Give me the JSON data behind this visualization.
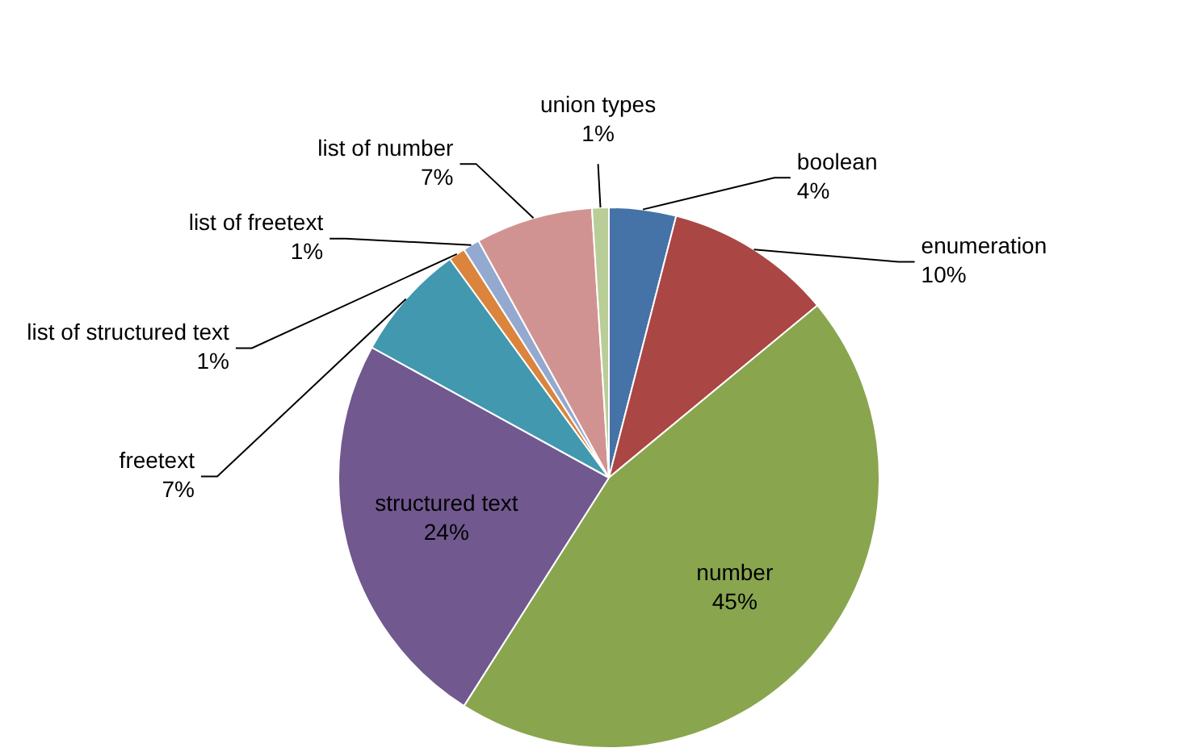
{
  "chart_data": {
    "type": "pie",
    "categories": [
      "boolean",
      "enumeration",
      "number",
      "structured text",
      "freetext",
      "list of structured text",
      "list of freetext",
      "list of number",
      "union types"
    ],
    "values": [
      4,
      10,
      45,
      24,
      7,
      1,
      1,
      7,
      1
    ],
    "value_labels": [
      "4%",
      "10%",
      "45%",
      "24%",
      "7%",
      "1%",
      "1%",
      "7%",
      "1%"
    ],
    "colors": [
      "#4572a7",
      "#aa4643",
      "#89a54e",
      "#71588f",
      "#4198af",
      "#db843d",
      "#93a9cf",
      "#d19392",
      "#b9cd96"
    ],
    "legend": false
  }
}
